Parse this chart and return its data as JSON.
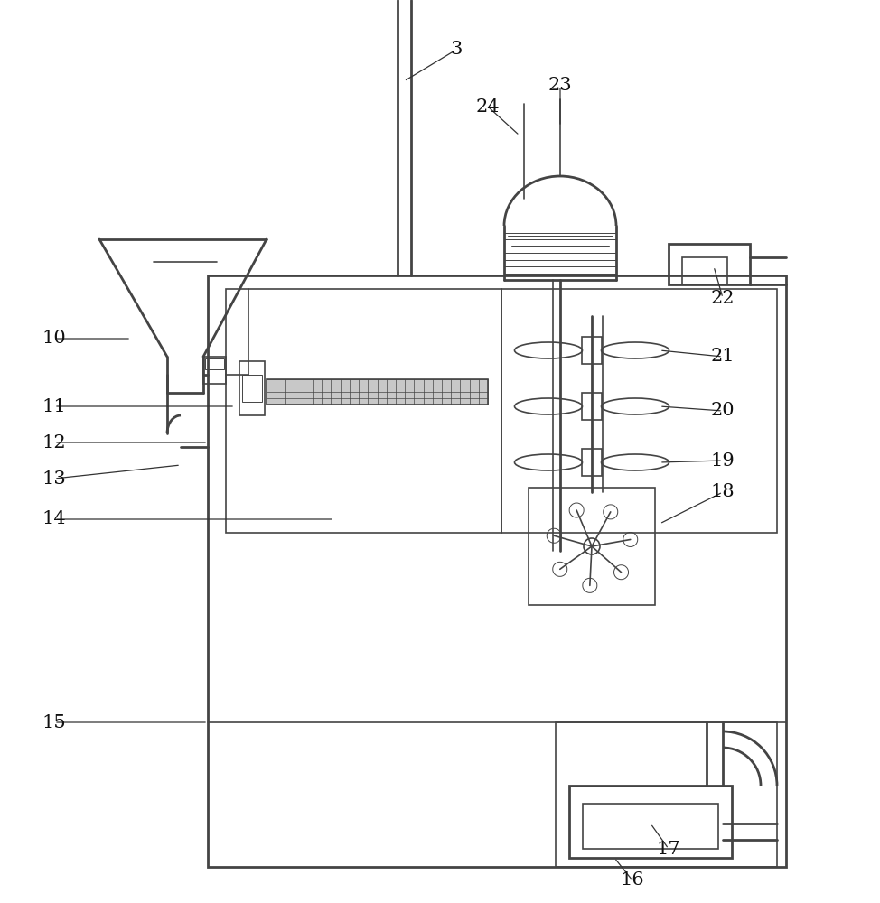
{
  "bg": "#ffffff",
  "lc": "#444444",
  "lw_main": 2.0,
  "lw_thin": 1.2,
  "lw_hair": 0.7,
  "fs": 15
}
